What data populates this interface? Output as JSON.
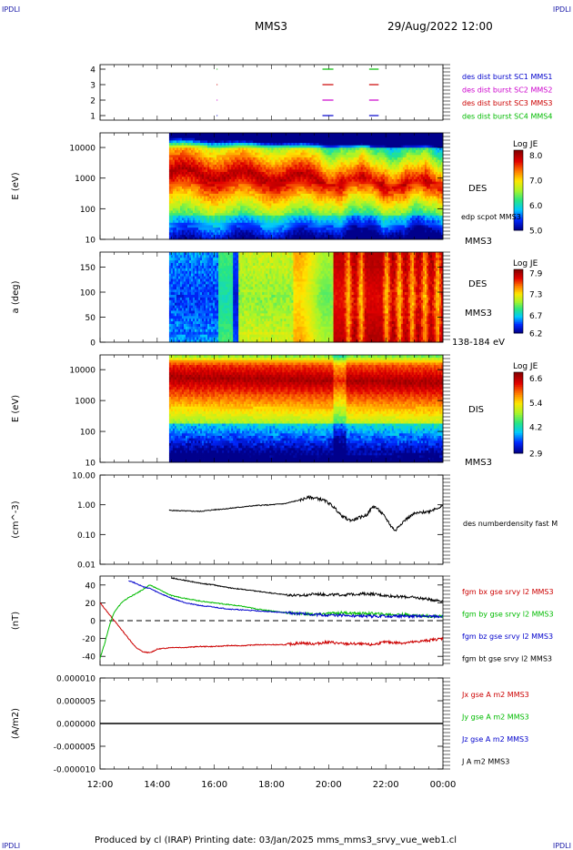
{
  "corners": {
    "top_left": "IPDLI",
    "top_right": "IPDLI",
    "bottom_left": "IPDLI",
    "bottom_right": "IPDLI"
  },
  "header": {
    "spacecraft": "MMS3",
    "datetime": "29/Aug/2022 12:00"
  },
  "footer": {
    "text": "Produced by cl (IRAP)   Printing date: 03/Jan/2025   mms_mms3_srvy_vue_web1.cl"
  },
  "time_axis": {
    "labels": [
      "12:00",
      "14:00",
      "16:00",
      "18:00",
      "20:00",
      "22:00",
      "00:00"
    ]
  },
  "colors": {
    "blue": "#0000cc",
    "magenta": "#cc00cc",
    "red": "#cc0000",
    "green": "#00bb00",
    "black": "#000000"
  },
  "chart_data": [
    {
      "type": "scatter",
      "id": "burst",
      "yticks": [
        "1",
        "2",
        "3",
        "4"
      ],
      "legend": [
        {
          "label": "des dist burst SC1 MMS1",
          "color": "#0000cc"
        },
        {
          "label": "des dist burst SC2 MMS2",
          "color": "#cc00cc"
        },
        {
          "label": "des dist burst SC3 MMS3",
          "color": "#cc0000"
        },
        {
          "label": "des dist burst SC4 MMS4",
          "color": "#00bb00"
        }
      ],
      "segments": [
        {
          "sc": 4,
          "start": "19:47",
          "end": "20:10"
        },
        {
          "sc": 4,
          "start": "21:25",
          "end": "21:45"
        },
        {
          "sc": 3,
          "start": "19:47",
          "end": "20:10"
        },
        {
          "sc": 3,
          "start": "21:25",
          "end": "21:45"
        },
        {
          "sc": 2,
          "start": "19:47",
          "end": "20:10"
        },
        {
          "sc": 2,
          "start": "21:25",
          "end": "21:45"
        },
        {
          "sc": 1,
          "start": "19:47",
          "end": "20:10"
        },
        {
          "sc": 1,
          "start": "21:25",
          "end": "21:45"
        }
      ]
    },
    {
      "type": "heatmap",
      "id": "des_energy",
      "ylabel": "E (eV)",
      "yticks": [
        "10",
        "100",
        "1000",
        "10000"
      ],
      "ylim": [
        10,
        30000
      ],
      "yscale": "log",
      "data_start": "14:25",
      "right_labels": {
        "species": "DES",
        "potential": "edp scpot MMS3",
        "sc": "MMS3"
      },
      "colorbar": {
        "title": "Log JE",
        "ticks": [
          "5.0",
          "6.0",
          "7.0",
          "8.0"
        ],
        "range": [
          5.0,
          8.2
        ]
      }
    },
    {
      "type": "heatmap",
      "id": "des_pitch",
      "ylabel": "a (deg)",
      "yticks": [
        "0",
        "50",
        "100",
        "150"
      ],
      "ylim": [
        0,
        180
      ],
      "data_start": "14:25",
      "right_labels": {
        "species": "DES",
        "sc": "MMS3",
        "energy": "138-184 eV"
      },
      "colorbar": {
        "title": "Log JE",
        "ticks": [
          "6.2",
          "6.7",
          "7.3",
          "7.9"
        ],
        "range": [
          6.2,
          8.0
        ]
      }
    },
    {
      "type": "heatmap",
      "id": "dis_energy",
      "ylabel": "E (eV)",
      "yticks": [
        "10",
        "100",
        "1000",
        "10000"
      ],
      "ylim": [
        10,
        30000
      ],
      "yscale": "log",
      "data_start": "14:25",
      "right_labels": {
        "species": "DIS",
        "sc": "MMS3"
      },
      "colorbar": {
        "title": "Log JE",
        "ticks": [
          "2.9",
          "4.2",
          "5.4",
          "6.6"
        ],
        "range": [
          2.9,
          6.9
        ]
      }
    },
    {
      "type": "line",
      "id": "density",
      "ylabel": "(cm^-3)",
      "yticks": [
        "0.01",
        "0.10",
        "1.00",
        "10.00"
      ],
      "ylim": [
        0.01,
        10
      ],
      "yscale": "log",
      "series": [
        {
          "name": "des numberdensity fast M",
          "color": "#000000",
          "x": [
            "14:25",
            "15:00",
            "15:30",
            "16:00",
            "16:30",
            "17:00",
            "17:30",
            "18:00",
            "18:30",
            "19:00",
            "19:20",
            "19:40",
            "19:55",
            "20:10",
            "20:25",
            "20:40",
            "20:50",
            "21:00",
            "21:20",
            "21:35",
            "21:50",
            "22:00",
            "22:10",
            "22:20",
            "22:40",
            "23:00",
            "23:30",
            "00:00"
          ],
          "y": [
            0.65,
            0.62,
            0.6,
            0.68,
            0.75,
            0.85,
            0.95,
            1.0,
            1.1,
            1.45,
            1.8,
            1.6,
            1.3,
            0.85,
            0.45,
            0.32,
            0.3,
            0.35,
            0.45,
            0.9,
            0.55,
            0.35,
            0.2,
            0.13,
            0.3,
            0.5,
            0.6,
            0.9
          ]
        }
      ]
    },
    {
      "type": "line",
      "id": "fgm",
      "ylabel": "(nT)",
      "yticks": [
        "-40",
        "-20",
        "0",
        "20",
        "40"
      ],
      "ylim": [
        -50,
        50
      ],
      "series": [
        {
          "name": "fgm bx gse srvy l2 MMS3",
          "color": "#cc0000",
          "x": [
            "12:00",
            "12:15",
            "12:30",
            "12:45",
            "13:00",
            "13:15",
            "13:30",
            "13:45",
            "14:00",
            "14:30",
            "15:00",
            "15:30",
            "16:00",
            "16:30",
            "17:00",
            "17:30",
            "18:00",
            "18:30",
            "19:00",
            "19:30",
            "20:00",
            "20:30",
            "21:00",
            "21:30",
            "22:00",
            "22:30",
            "23:00",
            "23:30",
            "00:00"
          ],
          "y": [
            20,
            10,
            0,
            -10,
            -20,
            -30,
            -35,
            -36,
            -32,
            -30,
            -30,
            -29,
            -29,
            -28,
            -28,
            -27,
            -27,
            -27,
            -25,
            -26,
            -24,
            -26,
            -26,
            -27,
            -24,
            -25,
            -24,
            -22,
            -20
          ]
        },
        {
          "name": "fgm by gse srvy l2 MMS3",
          "color": "#00bb00",
          "x": [
            "12:00",
            "12:10",
            "12:20",
            "12:30",
            "12:45",
            "13:00",
            "13:15",
            "13:30",
            "13:45",
            "14:00",
            "14:30",
            "15:00",
            "15:30",
            "16:00",
            "16:30",
            "17:00",
            "17:30",
            "18:00",
            "18:30",
            "19:00",
            "19:30",
            "20:00",
            "20:30",
            "21:00",
            "21:30",
            "22:00",
            "22:30",
            "23:00",
            "23:30",
            "00:00"
          ],
          "y": [
            -42,
            -25,
            -5,
            10,
            20,
            26,
            30,
            35,
            40,
            36,
            28,
            25,
            22,
            20,
            18,
            16,
            13,
            11,
            9,
            8,
            7,
            8,
            9,
            8,
            8,
            7,
            7,
            6,
            5,
            5
          ]
        },
        {
          "name": "fgm bz gse srvy l2 MMS3",
          "color": "#0000cc",
          "x": [
            "13:00",
            "13:15",
            "13:30",
            "13:45",
            "14:00",
            "14:30",
            "15:00",
            "15:30",
            "16:00",
            "16:30",
            "17:00",
            "17:30",
            "18:00",
            "18:30",
            "19:00",
            "19:30",
            "20:00",
            "20:30",
            "21:00",
            "21:30",
            "22:00",
            "22:30",
            "23:00",
            "23:30",
            "00:00"
          ],
          "y": [
            45,
            42,
            38,
            36,
            32,
            25,
            20,
            17,
            15,
            13,
            12,
            11,
            10,
            9,
            8,
            7,
            6,
            6,
            5,
            5,
            5,
            5,
            5,
            5,
            5
          ]
        },
        {
          "name": "fgm bt gse srvy l2 MMS3",
          "color": "#000000",
          "x": [
            "14:30",
            "15:00",
            "15:30",
            "16:00",
            "16:30",
            "17:00",
            "17:30",
            "18:00",
            "18:30",
            "19:00",
            "19:30",
            "20:00",
            "20:30",
            "21:00",
            "21:30",
            "22:00",
            "22:30",
            "23:00",
            "23:30",
            "00:00"
          ],
          "y": [
            48,
            45,
            42,
            40,
            37,
            35,
            33,
            31,
            29,
            28,
            30,
            29,
            29,
            30,
            30,
            28,
            27,
            26,
            24,
            22
          ]
        }
      ]
    },
    {
      "type": "line",
      "id": "current",
      "ylabel": "(A/m2)",
      "yticks": [
        "-0.000010",
        "-0.000005",
        "0.000000",
        "0.000005",
        "0.000010"
      ],
      "ylim": [
        -1e-05,
        1e-05
      ],
      "series": [
        {
          "name": "Jx gse A m2 MMS3",
          "color": "#cc0000",
          "x": [
            "12:00",
            "00:00"
          ],
          "y": [
            0,
            0
          ]
        },
        {
          "name": "Jy gse A m2 MMS3",
          "color": "#00bb00",
          "x": [
            "12:00",
            "00:00"
          ],
          "y": [
            0,
            0
          ]
        },
        {
          "name": "Jz gse A m2 MMS3",
          "color": "#0000cc",
          "x": [
            "12:00",
            "00:00"
          ],
          "y": [
            0,
            0
          ]
        },
        {
          "name": "J A m2 MMS3",
          "color": "#000000",
          "x": [
            "12:00",
            "00:00"
          ],
          "y": [
            0,
            0
          ]
        }
      ]
    }
  ]
}
